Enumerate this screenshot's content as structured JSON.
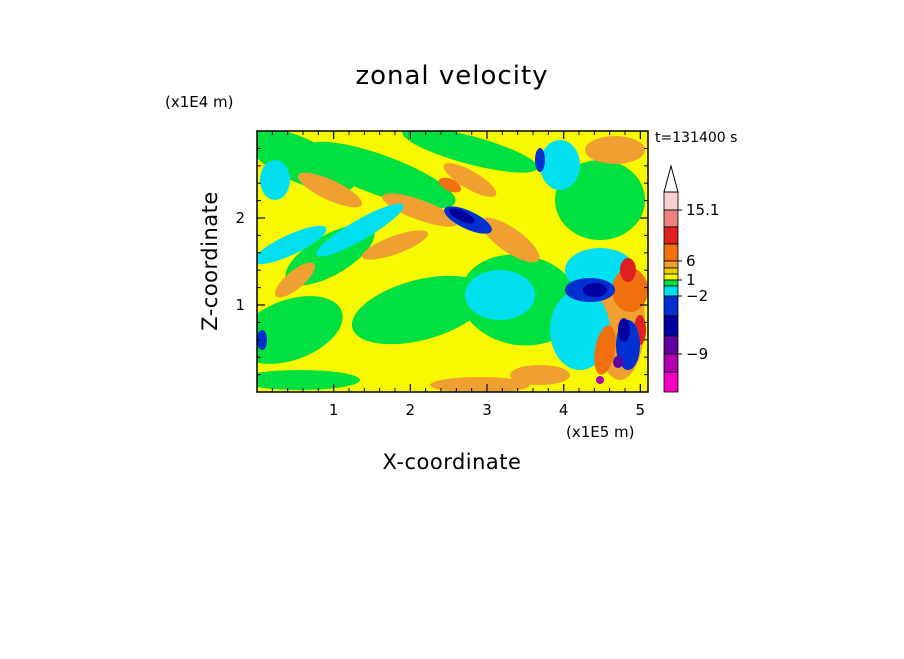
{
  "chart_data": {
    "type": "heatmap",
    "title": "zonal velocity",
    "xlabel": "X-coordinate",
    "ylabel": "Z-coordinate",
    "x_unit": "(x1E5 m)",
    "y_unit": "(x1E4 m)",
    "time_label": "t=131400 s",
    "xlim": [
      0,
      5.1
    ],
    "ylim": [
      0,
      3.0
    ],
    "x_ticks": [
      "1",
      "2",
      "3",
      "4",
      "5"
    ],
    "x_tick_values": [
      1,
      2,
      3,
      4,
      5
    ],
    "y_ticks": [
      "1",
      "2"
    ],
    "y_tick_values": [
      1,
      2
    ],
    "colorbar": {
      "labels": [
        "15.1",
        "6",
        "1",
        "−2",
        "−9"
      ],
      "colors_top_to_bottom": [
        "#f8d0d0",
        "#f08080",
        "#e02020",
        "#f07010",
        "#f0a030",
        "#f0d000",
        "#f8f800",
        "#00e040",
        "#00e0f0",
        "#0030d0",
        "#0000a0",
        "#6000a0",
        "#b000b0",
        "#f000c0"
      ]
    },
    "colors": {
      "background_field": "#f8f800"
    }
  }
}
